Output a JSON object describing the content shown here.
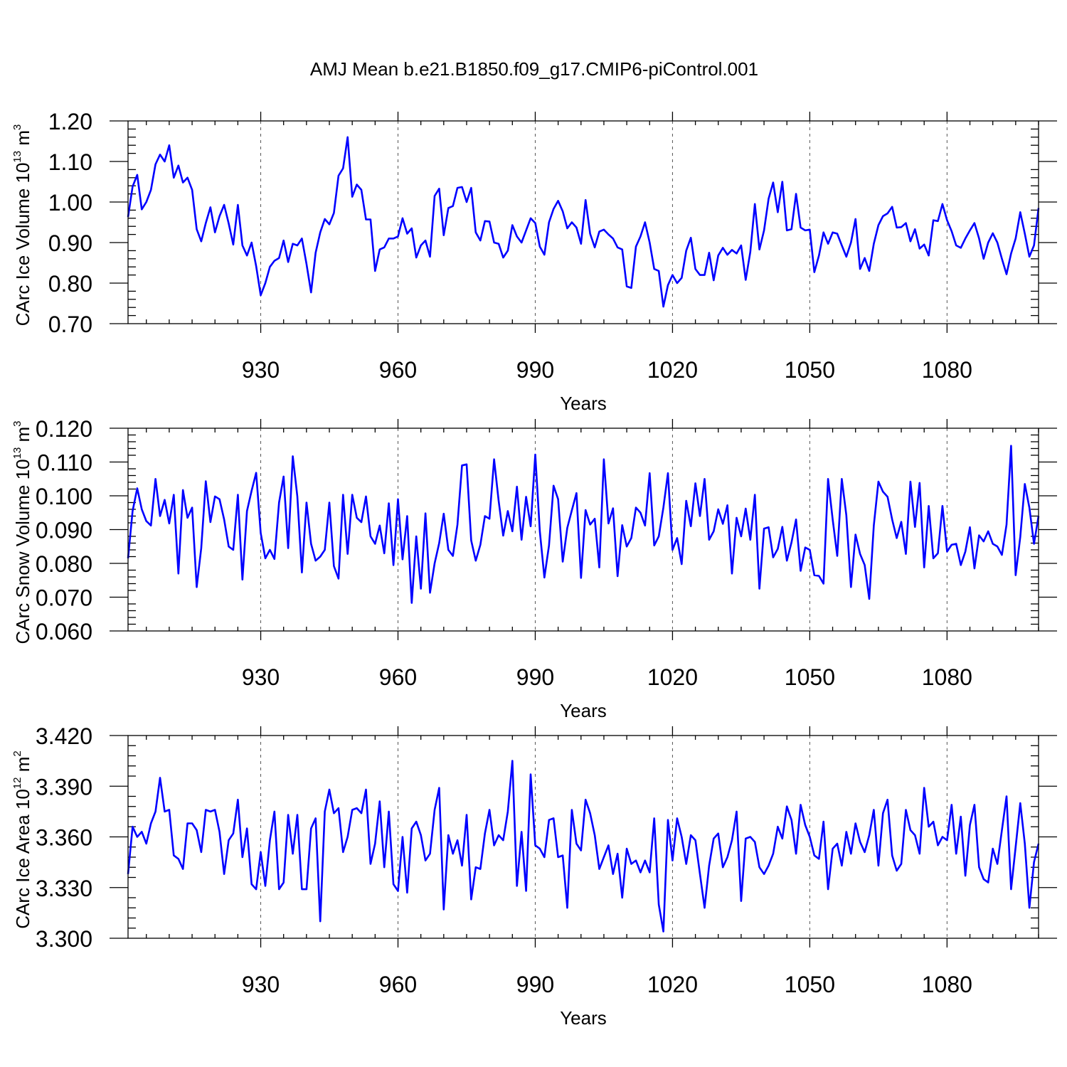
{
  "figure": {
    "title": "AMJ Mean b.e21.B1850.f09_g17.CMIP6-piControl.001",
    "line_color": "#0000ff",
    "grid": "dashed vertical lines at labelled years"
  },
  "chart_data": [
    {
      "type": "line",
      "title": "AMJ Mean b.e21.B1850.f09_g17.CMIP6-piControl.001",
      "xlabel": "Years",
      "ylabel": "CArc Ice Volume",
      "ylabel_unit": "10",
      "ylabel_exp": "13",
      "ylabel_m": "m",
      "ylabel_mexp": "3",
      "x_start": 901,
      "xlim": [
        901,
        1100
      ],
      "xticks": [
        930,
        960,
        990,
        1020,
        1050,
        1080
      ],
      "xtick_labels": [
        "930",
        "960",
        "990",
        "1020",
        "1050",
        "1080"
      ],
      "ylim": [
        0.7,
        1.2
      ],
      "yticks": [
        0.7,
        0.8,
        0.9,
        1.0,
        1.1,
        1.2
      ],
      "ytick_labels": [
        "0.70",
        "0.80",
        "0.90",
        "1.00",
        "1.10",
        "1.20"
      ],
      "values": [
        0.963,
        1.038,
        1.067,
        0.982,
        1.0,
        1.03,
        1.093,
        1.117,
        1.1,
        1.14,
        1.06,
        1.09,
        1.048,
        1.06,
        1.03,
        0.933,
        0.903,
        0.948,
        0.987,
        0.925,
        0.965,
        0.993,
        0.947,
        0.895,
        0.993,
        0.893,
        0.868,
        0.9,
        0.842,
        0.77,
        0.8,
        0.84,
        0.855,
        0.862,
        0.905,
        0.852,
        0.897,
        0.893,
        0.91,
        0.847,
        0.777,
        0.875,
        0.925,
        0.958,
        0.945,
        0.973,
        1.065,
        1.083,
        1.16,
        1.013,
        1.043,
        1.03,
        0.957,
        0.957,
        0.83,
        0.883,
        0.888,
        0.91,
        0.91,
        0.915,
        0.96,
        0.922,
        0.935,
        0.863,
        0.893,
        0.905,
        0.865,
        1.015,
        1.033,
        0.918,
        0.985,
        0.99,
        1.035,
        1.037,
        1.0,
        1.035,
        0.925,
        0.905,
        0.953,
        0.952,
        0.9,
        0.897,
        0.863,
        0.88,
        0.943,
        0.915,
        0.9,
        0.93,
        0.96,
        0.948,
        0.89,
        0.87,
        0.95,
        0.983,
        1.003,
        0.977,
        0.935,
        0.95,
        0.937,
        0.897,
        1.005,
        0.922,
        0.888,
        0.927,
        0.932,
        0.92,
        0.91,
        0.888,
        0.883,
        0.792,
        0.788,
        0.89,
        0.915,
        0.95,
        0.9,
        0.835,
        0.83,
        0.742,
        0.795,
        0.82,
        0.8,
        0.813,
        0.88,
        0.912,
        0.835,
        0.82,
        0.82,
        0.875,
        0.807,
        0.868,
        0.887,
        0.87,
        0.882,
        0.873,
        0.893,
        0.808,
        0.877,
        0.995,
        0.883,
        0.93,
        1.008,
        1.048,
        0.975,
        1.05,
        0.93,
        0.933,
        1.02,
        0.937,
        0.93,
        0.932,
        0.827,
        0.868,
        0.925,
        0.897,
        0.925,
        0.922,
        0.893,
        0.865,
        0.9,
        0.958,
        0.835,
        0.862,
        0.83,
        0.897,
        0.943,
        0.965,
        0.972,
        0.988,
        0.937,
        0.938,
        0.948,
        0.903,
        0.933,
        0.885,
        0.895,
        0.868,
        0.955,
        0.953,
        0.995,
        0.955,
        0.928,
        0.893,
        0.887,
        0.91,
        0.93,
        0.948,
        0.91,
        0.86,
        0.9,
        0.923,
        0.9,
        0.86,
        0.822,
        0.873,
        0.91,
        0.975,
        0.922,
        0.865,
        0.893,
        0.985
      ]
    },
    {
      "type": "line",
      "xlabel": "Years",
      "ylabel": "CArc Snow Volume",
      "ylabel_unit": "10",
      "ylabel_exp": "13",
      "ylabel_m": "m",
      "ylabel_mexp": "3",
      "x_start": 901,
      "xlim": [
        901,
        1100
      ],
      "xticks": [
        930,
        960,
        990,
        1020,
        1050,
        1080
      ],
      "xtick_labels": [
        "930",
        "960",
        "990",
        "1020",
        "1050",
        "1080"
      ],
      "ylim": [
        0.06,
        0.12
      ],
      "yticks": [
        0.06,
        0.07,
        0.08,
        0.09,
        0.1,
        0.11,
        0.12
      ],
      "ytick_labels": [
        "0.060",
        "0.070",
        "0.080",
        "0.090",
        "0.100",
        "0.110",
        "0.120"
      ],
      "values": [
        0.0815,
        0.0955,
        0.1022,
        0.096,
        0.0925,
        0.0912,
        0.105,
        0.094,
        0.0988,
        0.0918,
        0.1003,
        0.077,
        0.1017,
        0.0935,
        0.0965,
        0.073,
        0.0845,
        0.1043,
        0.0922,
        0.0998,
        0.099,
        0.093,
        0.085,
        0.084,
        0.1003,
        0.0752,
        0.0955,
        0.1015,
        0.1068,
        0.089,
        0.0815,
        0.084,
        0.0813,
        0.098,
        0.1057,
        0.0845,
        0.1117,
        0.0998,
        0.0773,
        0.098,
        0.0858,
        0.0808,
        0.082,
        0.084,
        0.098,
        0.0792,
        0.0755,
        0.1003,
        0.0828,
        0.1003,
        0.0935,
        0.0922,
        0.0998,
        0.088,
        0.0858,
        0.0912,
        0.083,
        0.0978,
        0.0795,
        0.099,
        0.0812,
        0.094,
        0.0683,
        0.088,
        0.0725,
        0.0948,
        0.0713,
        0.08,
        0.086,
        0.0947,
        0.084,
        0.0822,
        0.0915,
        0.109,
        0.1093,
        0.0868,
        0.0808,
        0.0855,
        0.094,
        0.0932,
        0.1108,
        0.0985,
        0.0882,
        0.0955,
        0.0895,
        0.1027,
        0.087,
        0.0997,
        0.091,
        0.1122,
        0.0895,
        0.0758,
        0.0853,
        0.103,
        0.099,
        0.0805,
        0.0905,
        0.0957,
        0.1008,
        0.0757,
        0.0958,
        0.0915,
        0.0932,
        0.0788,
        0.1108,
        0.0918,
        0.0963,
        0.0762,
        0.0913,
        0.085,
        0.0875,
        0.0965,
        0.095,
        0.0912,
        0.1067,
        0.0853,
        0.088,
        0.0965,
        0.1067,
        0.084,
        0.0875,
        0.0798,
        0.0985,
        0.091,
        0.1037,
        0.094,
        0.105,
        0.087,
        0.0895,
        0.096,
        0.0917,
        0.0972,
        0.077,
        0.0935,
        0.088,
        0.0962,
        0.087,
        0.1003,
        0.0725,
        0.0903,
        0.0907,
        0.0818,
        0.0843,
        0.0908,
        0.0808,
        0.0862,
        0.093,
        0.0778,
        0.0847,
        0.084,
        0.0765,
        0.0763,
        0.074,
        0.105,
        0.093,
        0.0822,
        0.105,
        0.0942,
        0.073,
        0.0885,
        0.0828,
        0.0795,
        0.0695,
        0.0912,
        0.1042,
        0.1012,
        0.0997,
        0.093,
        0.0875,
        0.0923,
        0.0828,
        0.1042,
        0.0908,
        0.1038,
        0.0788,
        0.097,
        0.0815,
        0.083,
        0.097,
        0.0835,
        0.0855,
        0.0858,
        0.0795,
        0.0835,
        0.0907,
        0.0785,
        0.0883,
        0.0865,
        0.0895,
        0.0858,
        0.085,
        0.0825,
        0.0915,
        0.1148,
        0.0765,
        0.0878,
        0.1035,
        0.0965,
        0.0858,
        0.094
      ]
    },
    {
      "type": "line",
      "xlabel": "Years",
      "ylabel": "CArc Ice Area",
      "ylabel_unit": "10",
      "ylabel_exp": "12",
      "ylabel_m": "m",
      "ylabel_mexp": "2",
      "x_start": 901,
      "xlim": [
        901,
        1100
      ],
      "xticks": [
        930,
        960,
        990,
        1020,
        1050,
        1080
      ],
      "xtick_labels": [
        "930",
        "960",
        "990",
        "1020",
        "1050",
        "1080"
      ],
      "ylim": [
        3.3,
        3.42
      ],
      "yticks": [
        3.3,
        3.33,
        3.36,
        3.39,
        3.42
      ],
      "ytick_labels": [
        "3.300",
        "3.330",
        "3.360",
        "3.390",
        "3.420"
      ],
      "values": [
        3.338,
        3.366,
        3.36,
        3.363,
        3.356,
        3.368,
        3.375,
        3.395,
        3.375,
        3.376,
        3.349,
        3.347,
        3.341,
        3.368,
        3.368,
        3.364,
        3.351,
        3.376,
        3.375,
        3.376,
        3.363,
        3.338,
        3.358,
        3.362,
        3.382,
        3.348,
        3.365,
        3.332,
        3.329,
        3.351,
        3.331,
        3.358,
        3.375,
        3.329,
        3.333,
        3.373,
        3.35,
        3.373,
        3.329,
        3.329,
        3.365,
        3.371,
        3.31,
        3.375,
        3.388,
        3.374,
        3.377,
        3.351,
        3.36,
        3.376,
        3.377,
        3.374,
        3.388,
        3.344,
        3.356,
        3.381,
        3.342,
        3.375,
        3.332,
        3.328,
        3.36,
        3.327,
        3.365,
        3.369,
        3.361,
        3.346,
        3.35,
        3.376,
        3.389,
        3.317,
        3.361,
        3.35,
        3.358,
        3.343,
        3.373,
        3.323,
        3.342,
        3.341,
        3.362,
        3.376,
        3.355,
        3.361,
        3.358,
        3.375,
        3.405,
        3.331,
        3.363,
        3.328,
        3.397,
        3.355,
        3.353,
        3.348,
        3.37,
        3.371,
        3.348,
        3.349,
        3.318,
        3.376,
        3.356,
        3.352,
        3.382,
        3.374,
        3.361,
        3.341,
        3.348,
        3.355,
        3.338,
        3.35,
        3.324,
        3.353,
        3.344,
        3.346,
        3.339,
        3.346,
        3.339,
        3.371,
        3.32,
        3.304,
        3.37,
        3.346,
        3.371,
        3.36,
        3.344,
        3.361,
        3.358,
        3.338,
        3.318,
        3.343,
        3.359,
        3.362,
        3.342,
        3.348,
        3.358,
        3.375,
        3.322,
        3.359,
        3.36,
        3.357,
        3.342,
        3.338,
        3.343,
        3.35,
        3.366,
        3.359,
        3.378,
        3.37,
        3.35,
        3.379,
        3.367,
        3.36,
        3.349,
        3.347,
        3.369,
        3.329,
        3.353,
        3.356,
        3.343,
        3.363,
        3.35,
        3.368,
        3.357,
        3.351,
        3.361,
        3.376,
        3.343,
        3.374,
        3.382,
        3.349,
        3.34,
        3.344,
        3.376,
        3.364,
        3.361,
        3.35,
        3.389,
        3.366,
        3.369,
        3.355,
        3.36,
        3.358,
        3.379,
        3.35,
        3.372,
        3.337,
        3.367,
        3.379,
        3.342,
        3.335,
        3.333,
        3.353,
        3.344,
        3.364,
        3.384,
        3.329,
        3.354,
        3.38,
        3.356,
        3.318,
        3.345,
        3.356
      ]
    }
  ]
}
